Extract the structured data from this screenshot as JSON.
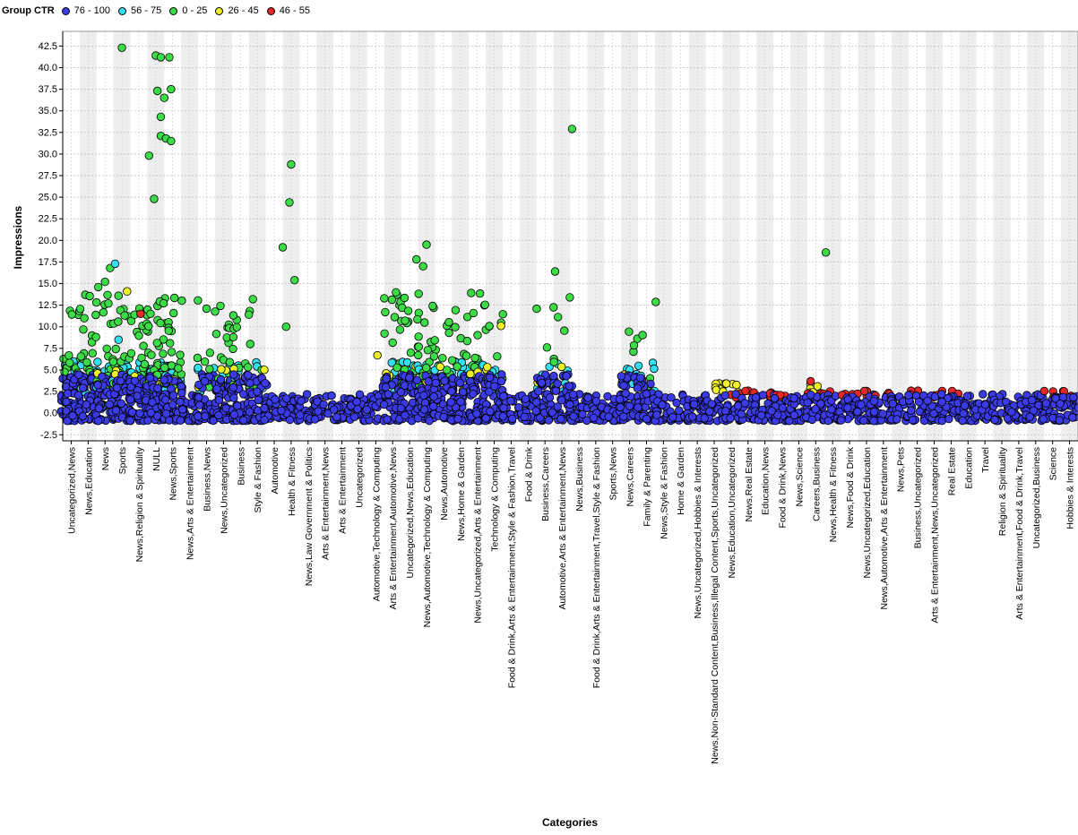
{
  "chart_data": {
    "type": "scatter",
    "title": "",
    "legend_title": "Group CTR",
    "legend_position": "top-left",
    "xlabel": "Categories",
    "ylabel": "Impressions",
    "ylim": [
      -3.2,
      44.2
    ],
    "yticks": [
      "-2.5",
      "0.0",
      "2.5",
      "5.0",
      "7.5",
      "10.0",
      "12.5",
      "15.0",
      "17.5",
      "20.0",
      "22.5",
      "25.0",
      "27.5",
      "30.0",
      "32.5",
      "35.0",
      "37.5",
      "40.0",
      "42.5"
    ],
    "grid": true,
    "colors": {
      "76 - 100": "#3a3ae6",
      "56 - 75": "#33e0f0",
      "0 - 25": "#3cdc46",
      "26 - 45": "#f0f028",
      "46 - 55": "#e62828"
    },
    "series": [
      {
        "name": "76 - 100"
      },
      {
        "name": "56 - 75"
      },
      {
        "name": "0 - 25"
      },
      {
        "name": "26 - 45"
      },
      {
        "name": "46 - 55"
      }
    ],
    "categories": [
      "Uncategorized,News",
      "News,Education",
      "News",
      "Sports",
      "News,Religion & Spirituality",
      "NULL",
      "News,Sports",
      "News,Arts & Entertainment",
      "Business,News",
      "News,Uncategorized",
      "Business",
      "Style & Fashion",
      "Automotive",
      "Health & Fitness",
      "News,Law Government & Politics",
      "Arts & Entertainment,News",
      "Arts & Entertainment",
      "Uncategorized",
      "Automotive,Technology & Computing",
      "Arts & Entertainment,Automotive,News",
      "Uncategorized,News,Education",
      "News,Automotive,Technology & Computing",
      "News,Automotive",
      "News,Home & Garden",
      "News,Uncategorized,Arts & Entertainment",
      "Technology & Computing",
      "Food & Drink,Arts & Entertainment,Style & Fashion,Travel",
      "Food & Drink",
      "Business,Careers",
      "Automotive,Arts & Entertainment,News",
      "News,Business",
      "Food & Drink,Arts & Entertainment,Travel,Style & Fashion",
      "Sports,News",
      "News,Careers",
      "Family & Parenting",
      "News,Style & Fashion",
      "Home & Garden",
      "News,Uncategorized,Hobbies & Interests",
      "News,Non-Standard Content,Business,Illegal Content,Sports,Uncategorized",
      "News,Education,Uncategorized",
      "News,Real Estate",
      "Education,News",
      "Food & Drink,News",
      "News,Science",
      "Careers,Business",
      "News,Health & Fitness",
      "News,Food & Drink",
      "News,Uncategorized,Education",
      "News,Automotive,Arts & Entertainment",
      "News,Pets",
      "Business,Uncategorized",
      "Arts & Entertainment,News,Uncategorized",
      "Real Estate",
      "Education",
      "Travel",
      "Religion & Spirituality",
      "Arts & Entertainment,Food & Drink,Travel",
      "Uncategorized,Business",
      "Science",
      "Hobbies & Interests"
    ],
    "outlier_points": [
      {
        "series": "0 - 25",
        "x": 3,
        "y": 42.3
      },
      {
        "series": "0 - 25",
        "x": 5,
        "y": 41.4
      },
      {
        "series": "0 - 25",
        "x": 5.3,
        "y": 41.2
      },
      {
        "series": "0 - 25",
        "x": 5.8,
        "y": 41.2
      },
      {
        "series": "0 - 25",
        "x": 5.1,
        "y": 37.3
      },
      {
        "series": "0 - 25",
        "x": 5.9,
        "y": 37.5
      },
      {
        "series": "0 - 25",
        "x": 5.5,
        "y": 36.5
      },
      {
        "series": "0 - 25",
        "x": 5.3,
        "y": 34.3
      },
      {
        "series": "0 - 25",
        "x": 5.3,
        "y": 32.1
      },
      {
        "series": "0 - 25",
        "x": 5.6,
        "y": 31.8
      },
      {
        "series": "0 - 25",
        "x": 5.9,
        "y": 31.5
      },
      {
        "series": "0 - 25",
        "x": 4.6,
        "y": 29.8
      },
      {
        "series": "0 - 25",
        "x": 13,
        "y": 28.8
      },
      {
        "series": "0 - 25",
        "x": 4.9,
        "y": 24.8
      },
      {
        "series": "0 - 25",
        "x": 12.9,
        "y": 24.4
      },
      {
        "series": "0 - 25",
        "x": 29.6,
        "y": 32.9
      },
      {
        "series": "0 - 25",
        "x": 21,
        "y": 19.5
      },
      {
        "series": "0 - 25",
        "x": 44.6,
        "y": 18.6
      },
      {
        "series": "0 - 25",
        "x": 12.5,
        "y": 19.2
      },
      {
        "series": "0 - 25",
        "x": 13.2,
        "y": 15.4
      },
      {
        "series": "0 - 25",
        "x": 20.4,
        "y": 17.8
      },
      {
        "series": "0 - 25",
        "x": 20.8,
        "y": 17
      },
      {
        "series": "0 - 25",
        "x": 28.6,
        "y": 16.4
      },
      {
        "series": "0 - 25",
        "x": 8,
        "y": 12.1
      },
      {
        "series": "0 - 25",
        "x": 12.7,
        "y": 10
      },
      {
        "series": "0 - 25",
        "x": 10.5,
        "y": 11.4
      },
      {
        "series": "0 - 25",
        "x": 2.3,
        "y": 16.8
      },
      {
        "series": "0 - 25",
        "x": 1.6,
        "y": 14.6
      },
      {
        "series": "0 - 25",
        "x": 2,
        "y": 15.2
      },
      {
        "series": "0 - 25",
        "x": 2.2,
        "y": 12.7
      },
      {
        "series": "56 - 75",
        "x": 2.6,
        "y": 17.3
      },
      {
        "series": "56 - 75",
        "x": 2.8,
        "y": 8.5
      },
      {
        "series": "26 - 45",
        "x": 25.4,
        "y": 10.1
      },
      {
        "series": "26 - 45",
        "x": 3.3,
        "y": 14.1
      },
      {
        "series": "26 - 45",
        "x": 18.1,
        "y": 6.7
      },
      {
        "series": "46 - 55",
        "x": 4.1,
        "y": 11.5
      },
      {
        "series": "46 - 55",
        "x": 43.7,
        "y": 3.7
      }
    ]
  }
}
